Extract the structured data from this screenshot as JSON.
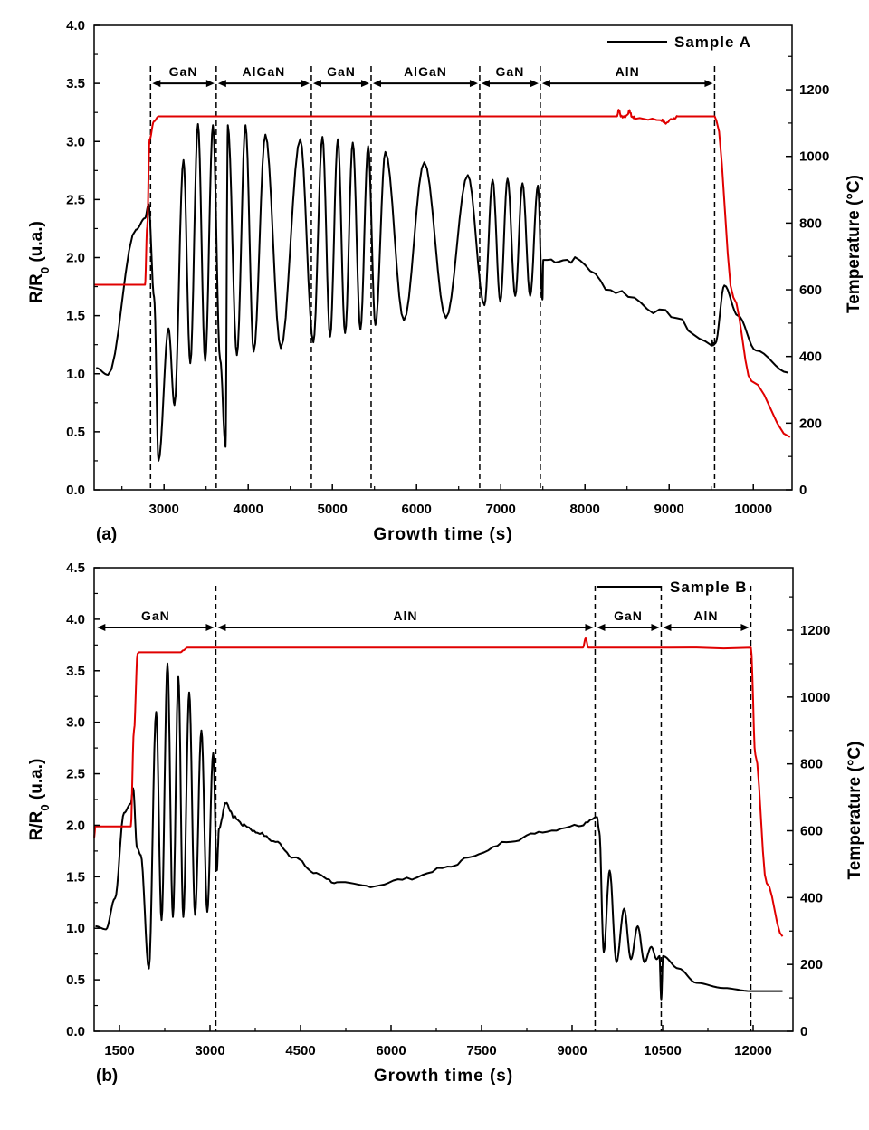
{
  "chart_data": [
    {
      "type": "line",
      "panel_label": "(a)",
      "title": "",
      "xlabel": "Growth time (s)",
      "ylabel_main": "R/R",
      "ylabel_sub": "0",
      "ylabel_tail": " (u.a.)",
      "y2label": "Temperature (°C)",
      "xlim": [
        2170,
        10460
      ],
      "ylim": [
        0,
        4.0
      ],
      "y2lim": [
        0,
        1393
      ],
      "xticks": [
        3000,
        4000,
        5000,
        6000,
        7000,
        8000,
        9000,
        10000
      ],
      "yticks": [
        "0.0",
        "0.5",
        "1.0",
        "1.5",
        "2.0",
        "2.5",
        "3.0",
        "3.5",
        "4.0"
      ],
      "y2ticks": [
        0,
        200,
        400,
        600,
        800,
        1000,
        1200
      ],
      "grid": false,
      "legend": {
        "label": "Sample A",
        "placement": "top-right"
      },
      "dashed_lines": [
        2840,
        3620,
        4750,
        5460,
        6750,
        7470,
        9540
      ],
      "regions": [
        {
          "label": "GaN",
          "start": 2840,
          "end": 3620
        },
        {
          "label": "AlGaN",
          "start": 3620,
          "end": 4750
        },
        {
          "label": "GaN",
          "start": 4750,
          "end": 5460
        },
        {
          "label": "AlGaN",
          "start": 5460,
          "end": 6750
        },
        {
          "label": "GaN",
          "start": 6750,
          "end": 7470
        },
        {
          "label": "AlN",
          "start": 7470,
          "end": 9540
        }
      ],
      "series": [
        {
          "name": "Sample A",
          "axis": "left",
          "color": "#000000",
          "x": [
            2194,
            2334,
            2667,
            2774,
            2817,
            2882,
            2935,
            3054,
            3124,
            3231,
            3312,
            3403,
            3489,
            3581,
            3667,
            3731,
            3758,
            3866,
            3968,
            4065,
            4204,
            4387,
            4618,
            4774,
            4882,
            4973,
            5065,
            5151,
            5242,
            5333,
            5425,
            5511,
            5629,
            5849,
            6091,
            6349,
            6608,
            6806,
            6903,
            6995,
            7081,
            7172,
            7258,
            7349,
            7441,
            7495,
            7505,
            7882,
            8366,
            8957,
            9495,
            9548,
            9656,
            9817,
            10032,
            10409
          ],
          "y": [
            1.05,
            0.99,
            2.24,
            2.34,
            2.46,
            1.66,
            0.25,
            1.39,
            0.73,
            2.84,
            1.09,
            3.15,
            1.11,
            3.14,
            1.12,
            0.37,
            3.14,
            1.16,
            3.14,
            1.19,
            3.06,
            1.22,
            3.02,
            1.27,
            3.04,
            1.32,
            3.02,
            1.35,
            2.99,
            1.38,
            2.96,
            1.42,
            2.91,
            1.46,
            2.82,
            1.48,
            2.71,
            1.59,
            2.67,
            1.62,
            2.68,
            1.67,
            2.64,
            1.67,
            2.62,
            1.64,
            1.98,
            1.98,
            1.71,
            1.52,
            1.26,
            1.26,
            1.76,
            1.5,
            1.2,
            1.01
          ]
        },
        {
          "axis": "right",
          "color": "#e00000",
          "x": [
            2170,
            2774,
            2800,
            2828,
            2880,
            2935,
            8380,
            8400,
            8430,
            8480,
            8530,
            8560,
            8600,
            8900,
            8960,
            9050,
            9100,
            9540,
            9559,
            9763,
            9978,
            10436
          ],
          "y": [
            615,
            615,
            790,
            1050,
            1105,
            1120,
            1120,
            1140,
            1120,
            1120,
            1135,
            1118,
            1115,
            1110,
            1100,
            1115,
            1120,
            1120,
            1110,
            577,
            326,
            158
          ]
        }
      ]
    },
    {
      "type": "line",
      "panel_label": "(b)",
      "title": "",
      "xlabel": "Growth time (s)",
      "ylabel_main": "R/R",
      "ylabel_sub": "0",
      "ylabel_tail": " (u.a.)",
      "y2label": "Temperature (°C)",
      "xlim": [
        1080,
        12660
      ],
      "ylim": [
        0,
        4.5
      ],
      "y2lim": [
        0,
        1387
      ],
      "xticks": [
        1500,
        3000,
        4500,
        6000,
        7500,
        9000,
        10500,
        12000
      ],
      "yticks": [
        "0.0",
        "0.5",
        "1.0",
        "1.5",
        "2.0",
        "2.5",
        "3.0",
        "3.5",
        "4.0",
        "4.5"
      ],
      "y2ticks": [
        0,
        200,
        400,
        600,
        800,
        1000,
        1200
      ],
      "grid": false,
      "legend": {
        "label": "Sample B",
        "placement": "top-right"
      },
      "dashed_lines": [
        3097,
        9382,
        10477,
        11962
      ],
      "regions": [
        {
          "label": "GaN",
          "start": 1100,
          "end": 3097
        },
        {
          "label": "AlN",
          "start": 3097,
          "end": 9382
        },
        {
          "label": "GaN",
          "start": 9382,
          "end": 10477
        },
        {
          "label": "AlN",
          "start": 10477,
          "end": 11962
        }
      ],
      "series": [
        {
          "name": "Sample B",
          "axis": "left",
          "color": "#000000",
          "x": [
            1102,
            1275,
            1425,
            1575,
            1687,
            1725,
            1792,
            1852,
            1987,
            2107,
            2197,
            2295,
            2385,
            2475,
            2557,
            2655,
            2752,
            2857,
            2955,
            3052,
            3112,
            3150,
            3262,
            3397,
            3562,
            3787,
            4087,
            4387,
            4762,
            5100,
            5662,
            6262,
            6937,
            7387,
            7987,
            8512,
            9112,
            9412,
            9450,
            9525,
            9622,
            9735,
            9862,
            9975,
            10087,
            10200,
            10312,
            10402,
            10447,
            10477,
            10507,
            10762,
            11062,
            11512,
            11962,
            12487
          ],
          "y": [
            1.02,
            0.99,
            1.29,
            2.12,
            2.21,
            2.36,
            1.78,
            1.71,
            0.61,
            3.1,
            1.08,
            3.57,
            1.11,
            3.44,
            1.11,
            3.29,
            1.13,
            2.92,
            1.16,
            2.7,
            1.56,
            1.97,
            2.22,
            2.08,
            2.0,
            1.93,
            1.84,
            1.69,
            1.53,
            1.44,
            1.41,
            1.48,
            1.59,
            1.71,
            1.85,
            1.94,
            2.0,
            2.08,
            1.94,
            0.77,
            1.56,
            0.67,
            1.19,
            0.7,
            1.02,
            0.67,
            0.82,
            0.7,
            0.73,
            0.31,
            0.73,
            0.61,
            0.47,
            0.42,
            0.39,
            0.39
          ]
        },
        {
          "axis": "right",
          "color": "#e00000",
          "x": [
            1080,
            1100,
            1687,
            1740,
            1800,
            1822,
            2512,
            2560,
            2625,
            9180,
            9225,
            9270,
            11962,
            12037,
            12225,
            12487
          ],
          "y": [
            580,
            613,
            613,
            900,
            1130,
            1134,
            1134,
            1140,
            1148,
            1148,
            1176,
            1148,
            1148,
            827,
            443,
            284
          ]
        }
      ]
    }
  ]
}
